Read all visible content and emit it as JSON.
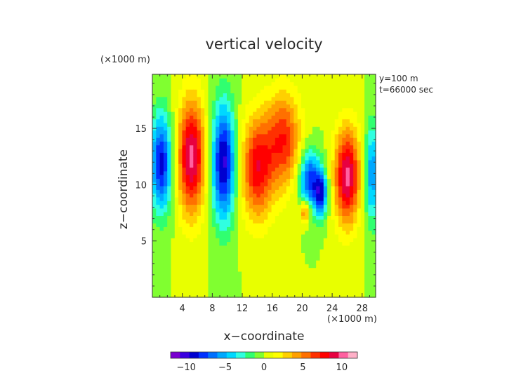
{
  "chart_data": {
    "type": "heatmap",
    "title": "vertical velocity",
    "xlabel": "x−coordinate",
    "ylabel": "z−coordinate",
    "x_unit": "(×1000 m)",
    "y_unit": "(×1000 m)",
    "annotations": [
      "y=100 m",
      "t=66000 sec"
    ],
    "xlim": [
      0,
      29.8
    ],
    "ylim": [
      0,
      19.8
    ],
    "x_ticks": [
      4,
      8,
      12,
      16,
      20,
      24,
      28
    ],
    "x_tick_labels": [
      "4",
      "8",
      "12",
      "16",
      "20",
      "24",
      "28"
    ],
    "y_ticks": [
      5,
      10,
      15
    ],
    "y_tick_labels": [
      "5",
      "10",
      "15"
    ],
    "colorbar": {
      "range": [
        -12,
        12
      ],
      "ticks": [
        -10,
        -5,
        0,
        5,
        10
      ],
      "tick_labels": [
        "−10",
        "−5",
        "0",
        "5",
        "10"
      ],
      "colors": [
        "#7a00d0",
        "#3a00e0",
        "#0000d0",
        "#0030ff",
        "#0070ff",
        "#00a8ff",
        "#00d8ff",
        "#30ffe0",
        "#30ff70",
        "#80ff30",
        "#e8ff00",
        "#ffff00",
        "#ffd000",
        "#ffa000",
        "#ff7000",
        "#ff3000",
        "#ff0000",
        "#e80040",
        "#ff60a0",
        "#ffb0c8"
      ]
    },
    "features": [
      {
        "x": 1.2,
        "z": 12.0,
        "sx": 1.0,
        "sz": 3.0,
        "w": -9
      },
      {
        "x": 5.2,
        "z": 12.5,
        "sx": 1.3,
        "sz": 3.6,
        "w": 10
      },
      {
        "x": 9.5,
        "z": 12.0,
        "sx": 1.1,
        "sz": 3.6,
        "w": -10
      },
      {
        "x": 14.0,
        "z": 11.5,
        "sx": 1.5,
        "sz": 3.2,
        "w": 8
      },
      {
        "x": 17.5,
        "z": 14.0,
        "sx": 1.6,
        "sz": 3.0,
        "w": 7
      },
      {
        "x": 21.0,
        "z": 10.5,
        "sx": 1.0,
        "sz": 1.8,
        "w": -8
      },
      {
        "x": 20.4,
        "z": 7.6,
        "sx": 0.45,
        "sz": 0.7,
        "w": 6
      },
      {
        "x": 22.5,
        "z": 9.2,
        "sx": 0.6,
        "sz": 1.4,
        "w": -8
      },
      {
        "x": 26.0,
        "z": 10.8,
        "sx": 1.2,
        "sz": 3.0,
        "w": 10
      },
      {
        "x": 29.3,
        "z": 11.0,
        "sx": 0.7,
        "sz": 3.0,
        "w": -6
      }
    ]
  }
}
